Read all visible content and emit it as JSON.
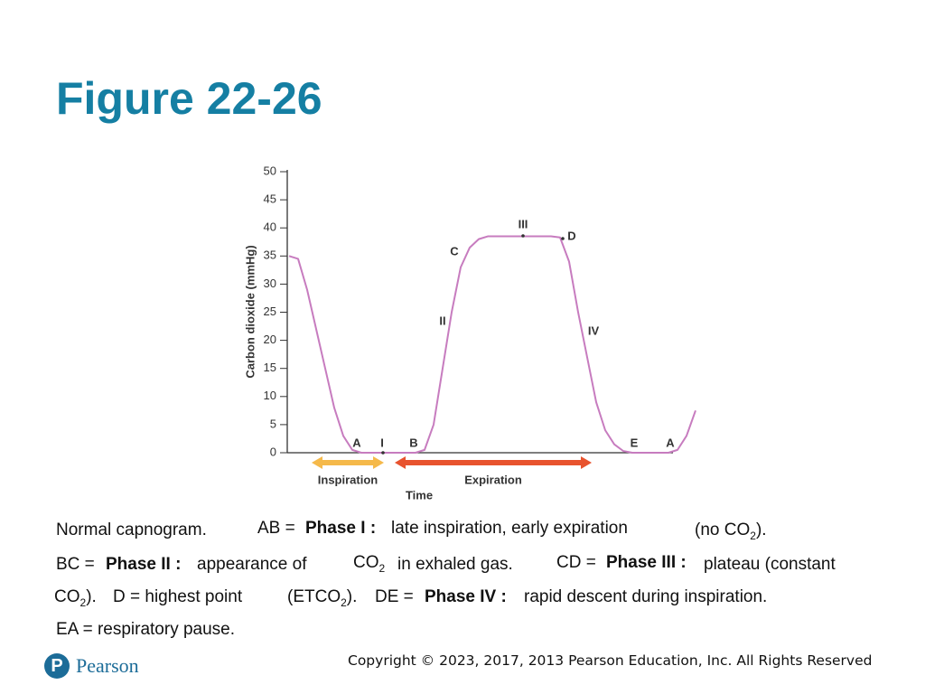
{
  "slide": {
    "title": "Figure 22-26",
    "logo": "Pearson",
    "copyright": "Copyright © 2023, 2017, 2013 Pearson Education, Inc. All Rights Reserved",
    "caption": [
      {
        "runs": [
          {
            "text": "Normal capnogram."
          }
        ]
      },
      {
        "runs": [
          {
            "text": "AB ="
          }
        ]
      },
      {
        "runs": [
          {
            "text": "Phase I :",
            "bold": true
          }
        ]
      },
      {
        "runs": [
          {
            "text": "late inspiration, early expiration"
          }
        ]
      },
      {
        "runs": [
          {
            "text": "(no CO"
          },
          {
            "text": "2",
            "sub": true
          },
          {
            "text": ")."
          }
        ]
      },
      {
        "runs": [
          {
            "text": "BC ="
          }
        ]
      },
      {
        "runs": [
          {
            "text": "Phase II :",
            "bold": true
          }
        ]
      },
      {
        "runs": [
          {
            "text": "appearance of"
          }
        ]
      },
      {
        "runs": [
          {
            "text": "CO"
          },
          {
            "text": "2",
            "sub": true
          }
        ]
      },
      {
        "runs": [
          {
            "text": "in exhaled gas."
          }
        ]
      },
      {
        "runs": [
          {
            "text": "CD ="
          }
        ]
      },
      {
        "runs": [
          {
            "text": "Phase III :",
            "bold": true
          }
        ]
      },
      {
        "runs": [
          {
            "text": "plateau (constant"
          }
        ]
      },
      {
        "runs": [
          {
            "text": "CO"
          },
          {
            "text": "2",
            "sub": true
          },
          {
            "text": ")."
          }
        ]
      },
      {
        "runs": [
          {
            "text": "D = highest point"
          }
        ]
      },
      {
        "runs": [
          {
            "text": "(ETCO"
          },
          {
            "text": "2",
            "sub": true
          },
          {
            "text": ")."
          }
        ]
      },
      {
        "runs": [
          {
            "text": "DE ="
          }
        ]
      },
      {
        "runs": [
          {
            "text": "Phase IV :",
            "bold": true
          }
        ]
      },
      {
        "runs": [
          {
            "text": "rapid descent during inspiration."
          }
        ]
      },
      {
        "runs": [
          {
            "text": "EA = respiratory pause."
          }
        ]
      }
    ]
  },
  "chart_data": {
    "type": "line",
    "ylabel": "Carbon dioxide (mmHg)",
    "xlabel": "Time",
    "ylim": [
      0,
      50
    ],
    "yticks": [
      0,
      5,
      10,
      15,
      20,
      25,
      30,
      35,
      40,
      45,
      50
    ],
    "categories": [
      null,
      null,
      null,
      null,
      null,
      null,
      null,
      null,
      null,
      null,
      null,
      null,
      null,
      null,
      null,
      null,
      null,
      null,
      null,
      null,
      null,
      null,
      null,
      null,
      null,
      null,
      null,
      null,
      null,
      null,
      null,
      null,
      null,
      null,
      null,
      null,
      null,
      null,
      null,
      null,
      null,
      null,
      null,
      null,
      null,
      null
    ],
    "series": [
      {
        "color": "#c77cbf",
        "values": [
          35,
          34.5,
          29,
          22,
          15,
          8,
          3,
          0.5,
          0,
          0,
          0,
          0,
          0,
          0,
          0,
          0.5,
          5,
          15,
          25,
          33,
          36.5,
          38,
          38.5,
          38.5,
          38.5,
          38.5,
          38.5,
          38.5,
          38.5,
          38.5,
          38.3,
          34,
          25,
          17,
          9,
          4,
          1.5,
          0.3,
          0,
          0,
          0,
          0,
          0,
          0.5,
          3,
          7.5
        ]
      }
    ],
    "annotations": [
      "A",
      "I",
      "B",
      "C",
      "II",
      "III",
      "D",
      "IV",
      "E",
      "A"
    ],
    "phases": [
      {
        "text": "Inspiration",
        "color": "#f5b94a"
      },
      {
        "text": "Expiration",
        "color": "#e8532e"
      }
    ]
  }
}
